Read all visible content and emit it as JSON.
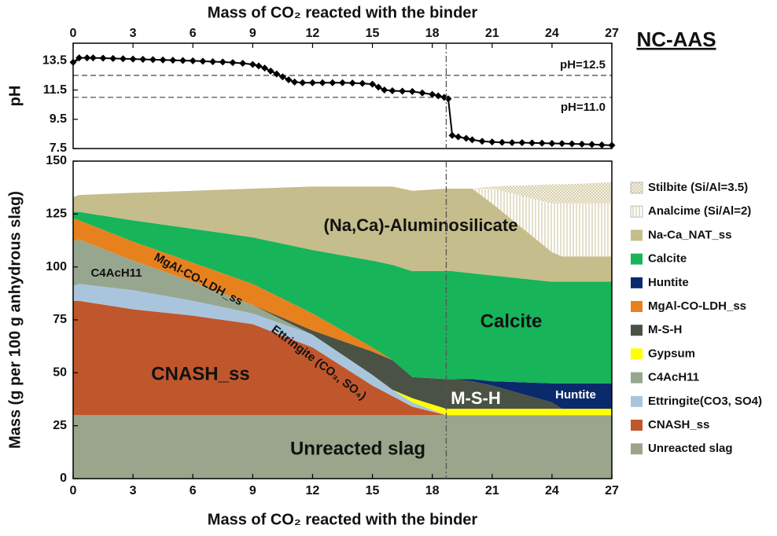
{
  "chart_data": [
    {
      "type": "line",
      "title": "NC-AAS",
      "xlabel": "Mass of CO₂ reacted with the binder",
      "ylabel": "pH",
      "xlim": [
        0,
        27
      ],
      "xticks": [
        0,
        3,
        6,
        9,
        12,
        15,
        18,
        21,
        24,
        27
      ],
      "ylim": [
        7.5,
        14.7
      ],
      "yticks": [
        7.5,
        9.5,
        11.5,
        13.5
      ],
      "hlines": [
        {
          "value": 12.5,
          "label": "pH=12.5"
        },
        {
          "value": 11.0,
          "label": "pH=11.0"
        }
      ],
      "vline": 18.7,
      "x": [
        0,
        0.3,
        0.7,
        1,
        1.5,
        2,
        2.5,
        3,
        3.5,
        4,
        4.5,
        5,
        5.5,
        6,
        6.5,
        7,
        7.5,
        8,
        8.5,
        9,
        9.3,
        9.6,
        9.9,
        10.2,
        10.5,
        10.8,
        11.1,
        11.5,
        12,
        12.5,
        13,
        13.5,
        14,
        14.5,
        15,
        15.3,
        15.6,
        16,
        16.5,
        17,
        17.5,
        18,
        18.3,
        18.6,
        18.8,
        19.0,
        19.3,
        19.7,
        20,
        20.5,
        21,
        21.5,
        22,
        22.5,
        23,
        23.5,
        24,
        24.5,
        25,
        25.5,
        26,
        26.5,
        27
      ],
      "series": [
        {
          "color": "#000000",
          "values": [
            13.4,
            13.7,
            13.7,
            13.7,
            13.68,
            13.66,
            13.64,
            13.62,
            13.6,
            13.58,
            13.56,
            13.54,
            13.52,
            13.5,
            13.47,
            13.44,
            13.42,
            13.38,
            13.33,
            13.25,
            13.15,
            13.0,
            12.8,
            12.6,
            12.4,
            12.2,
            12.05,
            12.0,
            12.0,
            12.0,
            12.0,
            12.0,
            11.98,
            11.95,
            11.9,
            11.7,
            11.5,
            11.45,
            11.42,
            11.4,
            11.3,
            11.2,
            11.1,
            11.0,
            10.9,
            8.4,
            8.3,
            8.2,
            8.1,
            8.0,
            7.95,
            7.92,
            7.9,
            7.9,
            7.88,
            7.87,
            7.85,
            7.84,
            7.82,
            7.8,
            7.78,
            7.75,
            7.72
          ]
        }
      ]
    },
    {
      "type": "stacked-area",
      "xlabel": "Mass of CO₂ reacted with the binder",
      "ylabel": "Mass (g per 100 g anhydrous slag)",
      "xlim": [
        0,
        27
      ],
      "xticks": [
        0,
        3,
        6,
        9,
        12,
        15,
        18,
        21,
        24,
        27
      ],
      "ylim": [
        0,
        150
      ],
      "yticks": [
        0,
        25,
        50,
        75,
        100,
        125,
        150
      ],
      "vline": 18.7,
      "x": [
        0,
        0.3,
        3,
        6,
        9,
        12,
        15,
        16,
        17,
        18.7,
        19,
        20,
        21,
        24,
        24.5,
        27
      ],
      "series": [
        {
          "name": "Unreacted slag",
          "color": "#9aa58b",
          "values": [
            30,
            30,
            30,
            30,
            30,
            30,
            30,
            30,
            30,
            30,
            30,
            30,
            30,
            30,
            30,
            30
          ]
        },
        {
          "name": "CNASH_ss",
          "color": "#c0572c",
          "values": [
            54,
            54,
            50,
            47,
            43,
            32,
            14,
            9,
            4,
            0,
            0,
            0,
            0,
            0,
            0,
            0
          ]
        },
        {
          "name": "Ettringite(CO3, SO4)",
          "color": "#a9c5de",
          "values": [
            7,
            8,
            9,
            7,
            5,
            6,
            5,
            3,
            2,
            0,
            0,
            0,
            0,
            0,
            0,
            0
          ]
        },
        {
          "name": "C4AcH11",
          "color": "#97a78f",
          "values": [
            21,
            21,
            14,
            9,
            4,
            0,
            0,
            0,
            0,
            0,
            0,
            0,
            0,
            0,
            0,
            0
          ]
        },
        {
          "name": "Gypsum",
          "color": "#ffff00",
          "values": [
            0,
            0,
            0,
            0,
            0,
            0,
            0,
            0,
            2,
            3,
            3,
            3,
            3,
            3,
            3,
            3
          ]
        },
        {
          "name": "M-S-H",
          "color": "#4a5245",
          "values": [
            0,
            0,
            0,
            0,
            0,
            2,
            11,
            14,
            10,
            14,
            14,
            13,
            11,
            3,
            0,
            0
          ]
        },
        {
          "name": "MgAl-CO-LDH_ss",
          "color": "#e7811e",
          "values": [
            11,
            9,
            9,
            9,
            10,
            8,
            2,
            0,
            0,
            0,
            0,
            0,
            0,
            0,
            0,
            0
          ]
        },
        {
          "name": "Huntite",
          "color": "#0b2a6b",
          "values": [
            0,
            0,
            0,
            0,
            0,
            0,
            0,
            0,
            0,
            0,
            0,
            1,
            2,
            9,
            12,
            12
          ]
        },
        {
          "name": "Calcite",
          "color": "#17b45a",
          "values": [
            3,
            4,
            10,
            16,
            22,
            30,
            41,
            45,
            50,
            51,
            51,
            50,
            50,
            48,
            48,
            48
          ]
        },
        {
          "name": "Na-Ca_NAT_ss",
          "color": "#c5bd8b",
          "values": [
            7,
            8,
            13,
            18,
            23,
            30,
            35,
            37,
            38,
            39,
            39,
            40,
            34,
            14,
            12,
            12
          ]
        },
        {
          "name": "Analcime (Si/Al=2)",
          "color": "#c8bf94",
          "pattern": "vertical-lines",
          "values": [
            0,
            0,
            0,
            0,
            0,
            0,
            0,
            0,
            0,
            0,
            0,
            0,
            7,
            23,
            25,
            25
          ]
        },
        {
          "name": "Stilbite (Si/Al=3.5)",
          "color": "#b8ae7a",
          "pattern": "dots",
          "values": [
            0,
            0,
            0,
            0,
            0,
            0,
            0,
            0,
            0,
            0,
            0,
            0,
            1,
            9,
            9,
            10
          ]
        }
      ],
      "annotations": [
        "(Na,Ca)-Aluminosilicate",
        "Calcite",
        "C4AcH11",
        "MgAl-CO-LDH_ss",
        "Ettringite (CO₃, SO₄)",
        "CNASH_ss",
        "M-S-H",
        "Huntite",
        "Unreacted slag"
      ]
    }
  ]
}
